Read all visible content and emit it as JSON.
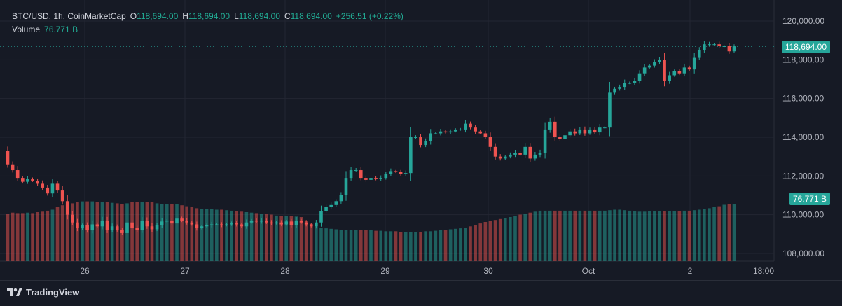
{
  "legend": {
    "symbol": "BTC/USD, 1h, CoinMarketCap",
    "open_label": "O",
    "open_value": "118,694.00",
    "high_label": "H",
    "high_value": "118,694.00",
    "low_label": "L",
    "low_value": "118,694.00",
    "close_label": "C",
    "close_value": "118,694.00",
    "change": "+256.51 (+0.22%)",
    "volume_label": "Volume",
    "volume_value": "76.771 B"
  },
  "price_tag": "118,694.00",
  "volume_tag": "76.771 B",
  "brand": {
    "name": "TradingView",
    "logo_icon": "tradingview-logo-icon"
  },
  "colors": {
    "up": "#26a69a",
    "down": "#ef5350",
    "background": "#161a25",
    "grid": "#232632",
    "text": "#b2b5be"
  },
  "chart_data": {
    "type": "candlestick",
    "interval": "1h",
    "x_ticks": [
      "26",
      "27",
      "28",
      "29",
      "30",
      "Oct",
      "2",
      "18:00"
    ],
    "y_ticks": [
      "108,000.00",
      "110,000.00",
      "112,000.00",
      "114,000.00",
      "116,000.00",
      "118,000.00",
      "120,000.00"
    ],
    "ylim": [
      107700,
      120500
    ],
    "last_price": 118694,
    "grid": true,
    "price_path": [
      113300,
      112600,
      112300,
      111900,
      111700,
      111850,
      111750,
      111600,
      111400,
      111100,
      111600,
      111250,
      110700,
      110000,
      109600,
      109300,
      109450,
      109200,
      109500,
      109400,
      109700,
      109200,
      109400,
      109200,
      109050,
      109600,
      109300,
      109200,
      109700,
      109400,
      109250,
      109450,
      109650,
      109700,
      109550,
      109800,
      109700,
      109600,
      109500,
      109300,
      109400,
      109450,
      109500,
      109500,
      109450,
      109500,
      109550,
      109500,
      109400,
      109600,
      109700,
      109650,
      109700,
      109600,
      109550,
      109600,
      109500,
      109650,
      109450,
      109700,
      109600,
      109500,
      109400,
      109600,
      110200,
      110400,
      110500,
      110700,
      111000,
      111900,
      112300,
      112300,
      111900,
      111800,
      111900,
      111850,
      111900,
      112100,
      112250,
      112200,
      112100,
      112150,
      114000,
      114000,
      113600,
      113800,
      114200,
      114200,
      114300,
      114250,
      114300,
      114400,
      114400,
      114700,
      114500,
      114300,
      114200,
      114000,
      113500,
      113000,
      112900,
      113000,
      113100,
      113200,
      113100,
      113500,
      112900,
      113100,
      113200,
      114400,
      114800,
      114000,
      113900,
      114100,
      114300,
      114200,
      114400,
      114200,
      114400,
      114250,
      114500,
      114500,
      116300,
      116500,
      116600,
      116800,
      116800,
      116900,
      117300,
      117600,
      117700,
      117900,
      118000,
      116900,
      117200,
      117400,
      117300,
      117600,
      117500,
      118100,
      118500,
      118800,
      118800,
      118800,
      118700,
      118700,
      118437,
      118694
    ],
    "volume_heights": [
      0.97,
      0.99,
      0.98,
      0.98,
      0.99,
      0.98,
      1.0,
      1.01,
      1.03,
      1.05,
      1.1,
      1.14,
      1.16,
      1.18,
      1.2,
      1.22,
      1.22,
      1.22,
      1.21,
      1.21,
      1.2,
      1.19,
      1.18,
      1.17,
      1.18,
      1.2,
      1.21,
      1.21,
      1.2,
      1.2,
      1.18,
      1.17,
      1.16,
      1.16,
      1.16,
      1.14,
      1.12,
      1.1,
      1.08,
      1.07,
      1.06,
      1.06,
      1.05,
      1.05,
      1.04,
      1.03,
      1.02,
      1.01,
      1.0,
      0.99,
      0.98,
      0.97,
      0.96,
      0.95,
      0.93,
      0.92,
      0.92,
      0.92,
      0.91,
      0.9,
      0.82,
      0.76,
      0.71,
      0.68,
      0.67,
      0.66,
      0.65,
      0.64,
      0.64,
      0.64,
      0.64,
      0.64,
      0.64,
      0.63,
      0.62,
      0.62,
      0.61,
      0.61,
      0.61,
      0.6,
      0.6,
      0.59,
      0.59,
      0.6,
      0.61,
      0.61,
      0.62,
      0.63,
      0.64,
      0.65,
      0.66,
      0.67,
      0.68,
      0.71,
      0.74,
      0.77,
      0.8,
      0.82,
      0.84,
      0.86,
      0.88,
      0.9,
      0.92,
      0.95,
      0.97,
      0.99,
      1.01,
      1.03,
      1.03,
      1.03,
      1.03,
      1.03,
      1.03,
      1.03,
      1.03,
      1.03,
      1.03,
      1.03,
      1.03,
      1.03,
      1.03,
      1.04,
      1.05,
      1.05,
      1.04,
      1.03,
      1.02,
      1.01,
      1.01,
      1.02,
      1.02,
      1.02,
      1.02,
      1.02,
      1.02,
      1.02,
      1.03,
      1.03,
      1.04,
      1.05,
      1.06,
      1.08,
      1.1,
      1.12,
      1.15,
      1.17,
      1.17,
      1.17,
      1.17,
      1.17,
      1.17,
      1.21,
      1.24,
      1.25,
      1.25,
      1.25,
      1.25,
      1.25
    ]
  }
}
